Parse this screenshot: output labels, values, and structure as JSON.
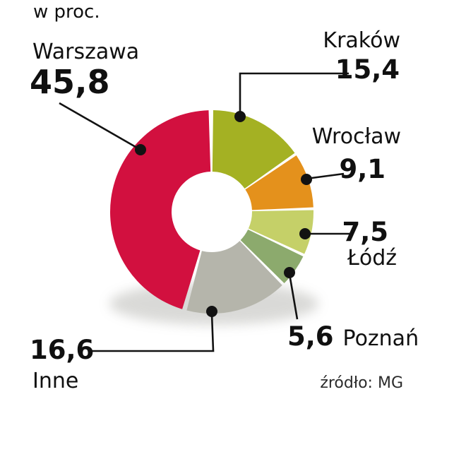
{
  "chart_data": {
    "type": "pie",
    "subtype": "donut",
    "title": "w proc.",
    "source": "źródło: MG",
    "direction": "clockwise",
    "start_angle_deg": 0,
    "legend_position": "none",
    "labels_connected_by_leader_lines": true,
    "segments": [
      {
        "label": "Kraków",
        "value": 15.4,
        "display": "15,4",
        "color": "#a4b123"
      },
      {
        "label": "Wrocław",
        "value": 9.1,
        "display": "9,1",
        "color": "#e4911c"
      },
      {
        "label": "Łódź",
        "value": 7.5,
        "display": "7,5",
        "color": "#c5d068"
      },
      {
        "label": "Poznań",
        "value": 5.6,
        "display": "5,6",
        "color": "#8caa6d"
      },
      {
        "label": "Inne",
        "value": 16.6,
        "display": "16,6",
        "color": "#b5b5ab"
      },
      {
        "label": "Warszawa",
        "value": 45.8,
        "display": "45,8",
        "color": "#d2103f",
        "pad_deg": 1.8
      }
    ]
  }
}
